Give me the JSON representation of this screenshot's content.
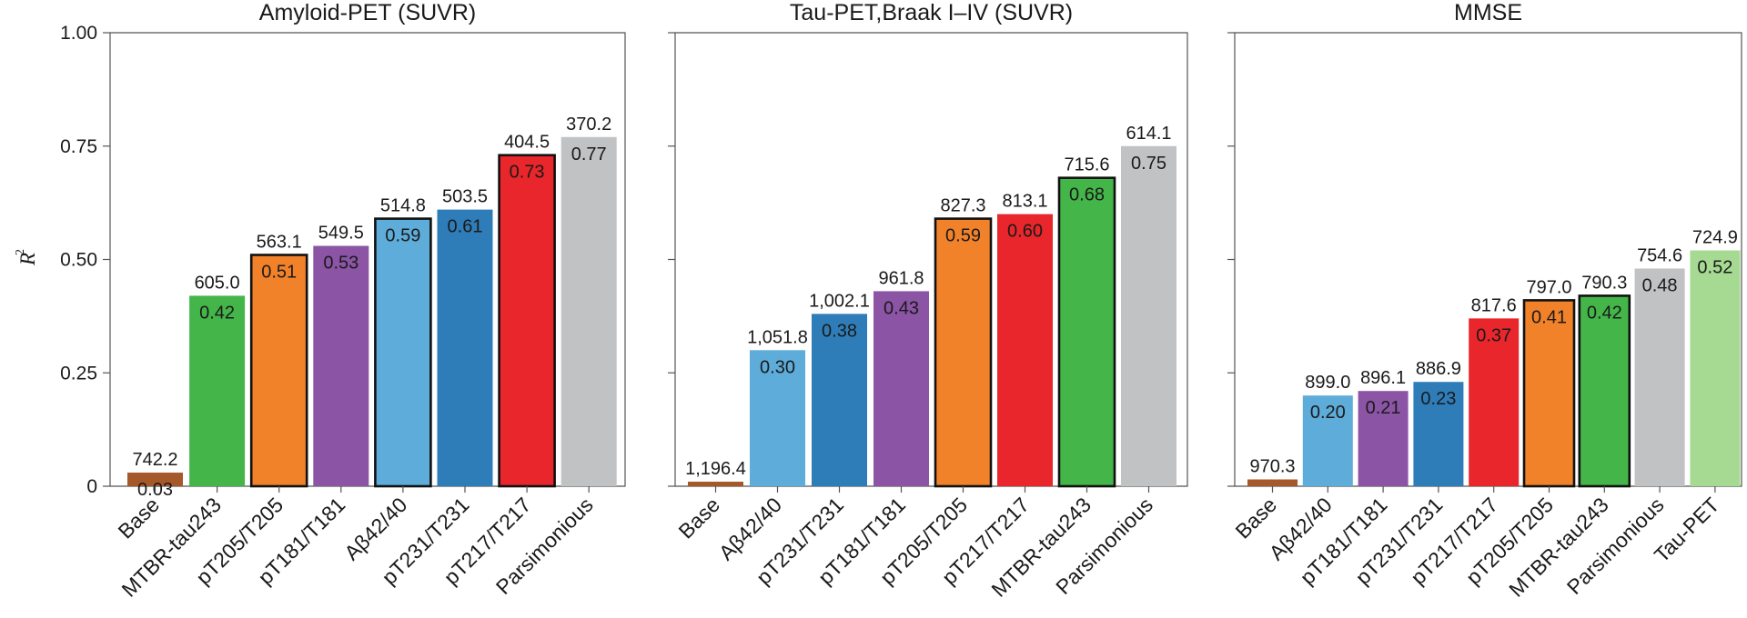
{
  "colors": {
    "brown": "#a5582a",
    "green": "#43b549",
    "orange": "#f2822a",
    "purple": "#8b54a5",
    "lightblue": "#5eacd9",
    "blue": "#2f7db8",
    "red": "#e8262b",
    "gray": "#c1c2c4",
    "lightgreen": "#a6da92"
  },
  "chart_data": [
    {
      "type": "bar",
      "title": "Amyloid-PET (SUVR)",
      "ylabel": "R",
      "ylabel_superscript": "2",
      "ylim": [
        0,
        1.0
      ],
      "yticks": [
        "0",
        "0.25",
        "0.50",
        "0.75",
        "1.00"
      ],
      "categories": [
        "Base",
        "MTBR-tau243",
        "pT205/T205",
        "pT181/T181",
        "Aβ42/40",
        "pT231/T231",
        "pT217/T217",
        "Parsimonious"
      ],
      "values": [
        0.03,
        0.42,
        0.51,
        0.53,
        0.59,
        0.61,
        0.73,
        0.77
      ],
      "value_labels": [
        "0.03",
        "0.42",
        "0.51",
        "0.53",
        "0.59",
        "0.61",
        "0.73",
        "0.77"
      ],
      "top_labels": [
        "742.2",
        "605.0",
        "563.1",
        "549.5",
        "514.8",
        "503.5",
        "404.5",
        "370.2"
      ],
      "colors": [
        "brown",
        "green",
        "orange",
        "purple",
        "lightblue",
        "blue",
        "red",
        "gray"
      ],
      "outlined": [
        false,
        false,
        true,
        false,
        true,
        false,
        true,
        false
      ],
      "grid": false
    },
    {
      "type": "bar",
      "title": "Tau-PET,Braak I–IV (SUVR)",
      "ylim": [
        0,
        1.0
      ],
      "categories": [
        "Base",
        "Aβ42/40",
        "pT231/T231",
        "pT181/T181",
        "pT205/T205",
        "pT217/T217",
        "MTBR-tau243",
        "Parsimonious"
      ],
      "values": [
        0.01,
        0.3,
        0.38,
        0.43,
        0.59,
        0.6,
        0.68,
        0.75
      ],
      "value_labels": [
        "",
        "0.30",
        "0.38",
        "0.43",
        "0.59",
        "0.60",
        "0.68",
        "0.75"
      ],
      "top_labels": [
        "1,196.4",
        "1,051.8",
        "1,002.1",
        "961.8",
        "827.3",
        "813.1",
        "715.6",
        "614.1"
      ],
      "colors": [
        "brown",
        "lightblue",
        "blue",
        "purple",
        "orange",
        "red",
        "green",
        "gray"
      ],
      "outlined": [
        false,
        false,
        false,
        false,
        true,
        false,
        true,
        false
      ],
      "grid": false
    },
    {
      "type": "bar",
      "title": "MMSE",
      "ylim": [
        0,
        1.0
      ],
      "categories": [
        "Base",
        "Aβ42/40",
        "pT181/T181",
        "pT231/T231",
        "pT217/T217",
        "pT205/T205",
        "MTBR-tau243",
        "Parsimonious",
        "Tau-PET"
      ],
      "values": [
        0.015,
        0.2,
        0.21,
        0.23,
        0.37,
        0.41,
        0.42,
        0.48,
        0.52
      ],
      "value_labels": [
        "",
        "0.20",
        "0.21",
        "0.23",
        "0.37",
        "0.41",
        "0.42",
        "0.48",
        "0.52"
      ],
      "top_labels": [
        "970.3",
        "899.0",
        "896.1",
        "886.9",
        "817.6",
        "797.0",
        "790.3",
        "754.6",
        "724.9"
      ],
      "colors": [
        "brown",
        "lightblue",
        "purple",
        "blue",
        "red",
        "orange",
        "green",
        "gray",
        "lightgreen"
      ],
      "outlined": [
        false,
        false,
        false,
        false,
        false,
        true,
        true,
        false,
        false
      ],
      "grid": false
    }
  ]
}
